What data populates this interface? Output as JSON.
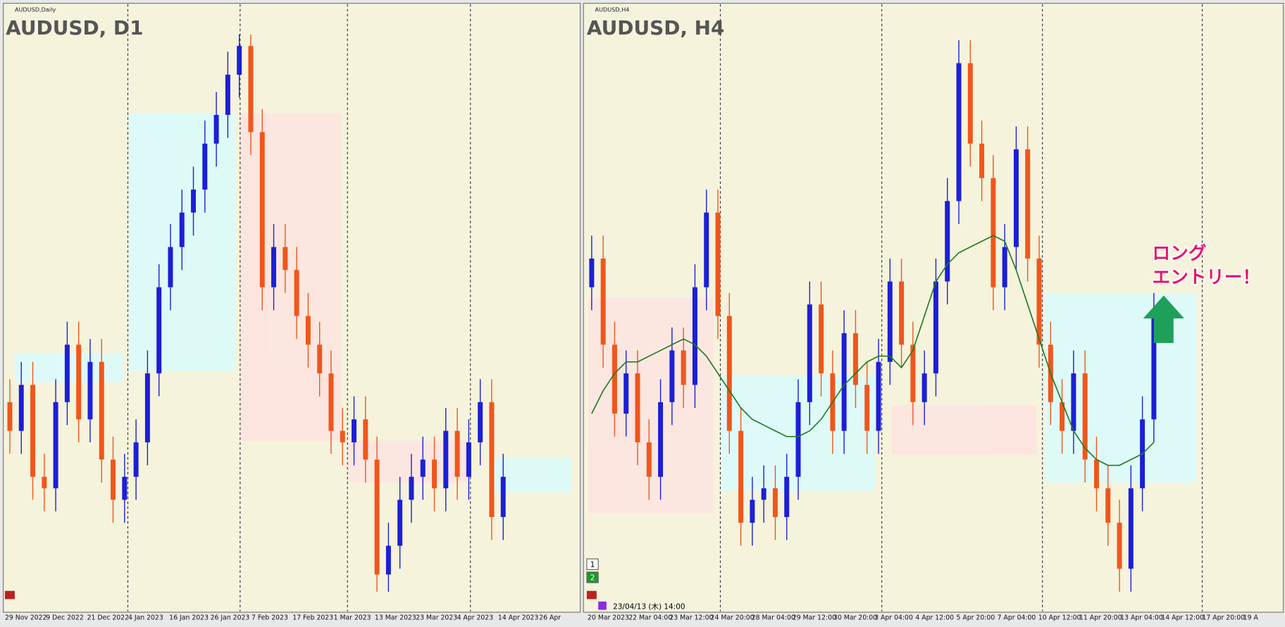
{
  "charts": [
    {
      "type": "candlestick",
      "symbol_label": "AUDUSD,Daily",
      "title": "AUDUSD, D1",
      "ylim": [
        0,
        100
      ],
      "dates": [
        "29 Nov 2022",
        "9 Dec 2022",
        "21 Dec 2022",
        "4 Jan 2023",
        "16 Jan 2023",
        "26 Jan 2023",
        "7 Feb 2023",
        "17 Feb 2023",
        "1 Mar 2023",
        "13 Mar 2023",
        "23 Mar 2023",
        "4 Apr 2023",
        "14 Apr 2023",
        "26 Apr"
      ],
      "up_color": "#1c1fd6",
      "down_color": "#f0561c",
      "candles": [
        [
          35,
          39,
          26,
          30
        ],
        [
          30,
          42,
          26,
          38
        ],
        [
          38,
          42,
          18,
          22
        ],
        [
          22,
          26,
          16,
          20
        ],
        [
          20,
          39,
          16,
          35
        ],
        [
          35,
          49,
          31,
          45
        ],
        [
          45,
          49,
          28,
          32
        ],
        [
          32,
          46,
          28,
          42
        ],
        [
          42,
          46,
          21,
          25
        ],
        [
          25,
          29,
          14,
          18
        ],
        [
          18,
          26,
          14,
          22
        ],
        [
          22,
          32,
          18,
          28
        ],
        [
          28,
          44,
          24,
          40
        ],
        [
          40,
          59,
          36,
          55
        ],
        [
          55,
          66,
          51,
          62
        ],
        [
          62,
          72,
          58,
          68
        ],
        [
          68,
          76,
          64,
          72
        ],
        [
          72,
          84,
          68,
          80
        ],
        [
          80,
          89,
          76,
          85
        ],
        [
          85,
          96,
          81,
          92
        ],
        [
          92,
          99,
          88,
          97
        ],
        [
          97,
          99,
          78,
          82
        ],
        [
          82,
          86,
          51,
          55
        ],
        [
          55,
          66,
          51,
          62
        ],
        [
          62,
          66,
          54,
          58
        ],
        [
          58,
          62,
          46,
          50
        ],
        [
          50,
          54,
          41,
          45
        ],
        [
          45,
          49,
          36,
          40
        ],
        [
          40,
          44,
          26,
          30
        ],
        [
          30,
          34,
          24,
          28
        ],
        [
          28,
          36,
          24,
          32
        ],
        [
          32,
          36,
          21,
          25
        ],
        [
          25,
          29,
          2,
          5
        ],
        [
          5,
          14,
          2,
          10
        ],
        [
          10,
          22,
          6,
          18
        ],
        [
          18,
          26,
          14,
          22
        ],
        [
          22,
          29,
          18,
          25
        ],
        [
          25,
          29,
          16,
          20
        ],
        [
          20,
          34,
          16,
          30
        ],
        [
          30,
          34,
          18,
          22
        ],
        [
          22,
          32,
          18,
          28
        ],
        [
          28,
          39,
          24,
          35
        ],
        [
          35,
          39,
          11,
          15
        ],
        [
          15,
          26,
          11,
          22
        ]
      ]
    },
    {
      "type": "candlestick",
      "symbol_label": "AUDUSD,H4",
      "title": "AUDUSD, H4",
      "ylim": [
        0,
        100
      ],
      "dates": [
        "20 Mar 2023",
        "22 Mar 04:00",
        "23 Mar 12:00",
        "24 Mar 20:00",
        "28 Mar 04:00",
        "29 Mar 12:00",
        "30 Mar 20:00",
        "3 Apr 04:00",
        "4 Apr 12:00",
        "5 Apr 20:00",
        "7 Apr 04:00",
        "10 Apr 12:00",
        "11 Apr 20:00",
        "13 Apr 04:00",
        "14 Apr 12:00",
        "17 Apr 20:00",
        "19 A"
      ],
      "up_color": "#1c1fd6",
      "down_color": "#f0561c",
      "candles": [
        [
          55,
          64,
          51,
          60
        ],
        [
          60,
          64,
          41,
          45
        ],
        [
          45,
          49,
          29,
          33
        ],
        [
          33,
          44,
          29,
          40
        ],
        [
          40,
          44,
          24,
          28
        ],
        [
          28,
          32,
          18,
          22
        ],
        [
          22,
          39,
          18,
          35
        ],
        [
          35,
          48,
          31,
          44
        ],
        [
          44,
          48,
          34,
          38
        ],
        [
          38,
          59,
          34,
          55
        ],
        [
          55,
          72,
          51,
          68
        ],
        [
          68,
          72,
          46,
          50
        ],
        [
          50,
          54,
          26,
          30
        ],
        [
          30,
          34,
          10,
          14
        ],
        [
          14,
          22,
          10,
          18
        ],
        [
          18,
          24,
          14,
          20
        ],
        [
          20,
          24,
          11,
          15
        ],
        [
          15,
          26,
          11,
          22
        ],
        [
          22,
          39,
          18,
          35
        ],
        [
          35,
          56,
          31,
          52
        ],
        [
          52,
          56,
          36,
          40
        ],
        [
          40,
          44,
          26,
          30
        ],
        [
          30,
          51,
          26,
          47
        ],
        [
          47,
          51,
          34,
          38
        ],
        [
          38,
          42,
          26,
          30
        ],
        [
          30,
          46,
          26,
          42
        ],
        [
          42,
          60,
          38,
          56
        ],
        [
          56,
          60,
          41,
          45
        ],
        [
          45,
          49,
          31,
          35
        ],
        [
          35,
          44,
          31,
          40
        ],
        [
          40,
          60,
          36,
          56
        ],
        [
          56,
          74,
          52,
          70
        ],
        [
          70,
          98,
          66,
          94
        ],
        [
          94,
          98,
          76,
          80
        ],
        [
          80,
          84,
          70,
          74
        ],
        [
          74,
          78,
          51,
          55
        ],
        [
          55,
          66,
          51,
          62
        ],
        [
          62,
          83,
          58,
          79
        ],
        [
          79,
          83,
          56,
          60
        ],
        [
          60,
          64,
          41,
          45
        ],
        [
          45,
          49,
          31,
          35
        ],
        [
          35,
          39,
          26,
          30
        ],
        [
          30,
          44,
          26,
          40
        ],
        [
          40,
          44,
          21,
          25
        ],
        [
          25,
          29,
          16,
          20
        ],
        [
          20,
          24,
          10,
          14
        ],
        [
          14,
          18,
          2,
          6
        ],
        [
          6,
          24,
          2,
          20
        ],
        [
          20,
          36,
          16,
          32
        ],
        [
          32,
          54,
          28,
          50
        ]
      ],
      "ma_color": "#1f7a1f",
      "ma": [
        33,
        37,
        40,
        42,
        42,
        43,
        44,
        45,
        46,
        45,
        43,
        40,
        37,
        34,
        32,
        31,
        30,
        29,
        29,
        30,
        32,
        35,
        38,
        40,
        42,
        43,
        43,
        41,
        44,
        50,
        56,
        59,
        61,
        62,
        63,
        64,
        63,
        58,
        52,
        46,
        40,
        35,
        30,
        27,
        25,
        24,
        24,
        25,
        26,
        28
      ],
      "annotation": [
        "ロング",
        "エントリー！"
      ],
      "timestamp": "23/04/13 (木) 14:00",
      "buttons": [
        "1",
        "2"
      ]
    }
  ]
}
